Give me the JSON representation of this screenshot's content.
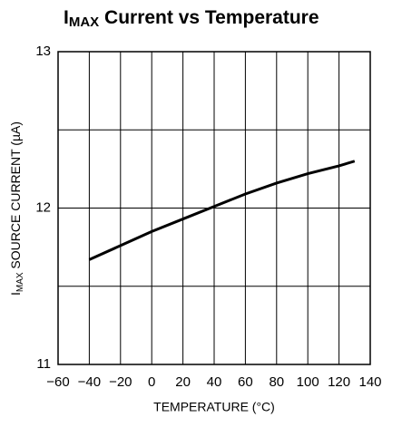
{
  "chart_data": {
    "type": "line",
    "title": {
      "main": "I",
      "subscript": "MAX",
      "rest": " Current vs Temperature"
    },
    "ylabel": {
      "main": "I",
      "subscript": "MAX",
      "rest": " SOURCE CURRENT (µA)"
    },
    "xlabel": "TEMPERATURE (°C)",
    "x": [
      -40,
      -20,
      0,
      20,
      40,
      60,
      80,
      100,
      120,
      130
    ],
    "series": [
      {
        "color": "#000000",
        "values": [
          11.67,
          11.76,
          11.85,
          11.93,
          12.01,
          12.09,
          12.16,
          12.22,
          12.27,
          12.3
        ]
      }
    ],
    "xlim": [
      -60,
      140
    ],
    "xticks": [
      {
        "value": -60,
        "label": "−60"
      },
      {
        "value": -40,
        "label": "−40"
      },
      {
        "value": -20,
        "label": "−20"
      },
      0,
      20,
      40,
      60,
      80,
      100,
      120,
      140
    ],
    "ylim": [
      11,
      13
    ],
    "yticks": [
      11,
      12,
      13
    ],
    "yminor": [
      11.5,
      12.5
    ],
    "grid": true
  }
}
